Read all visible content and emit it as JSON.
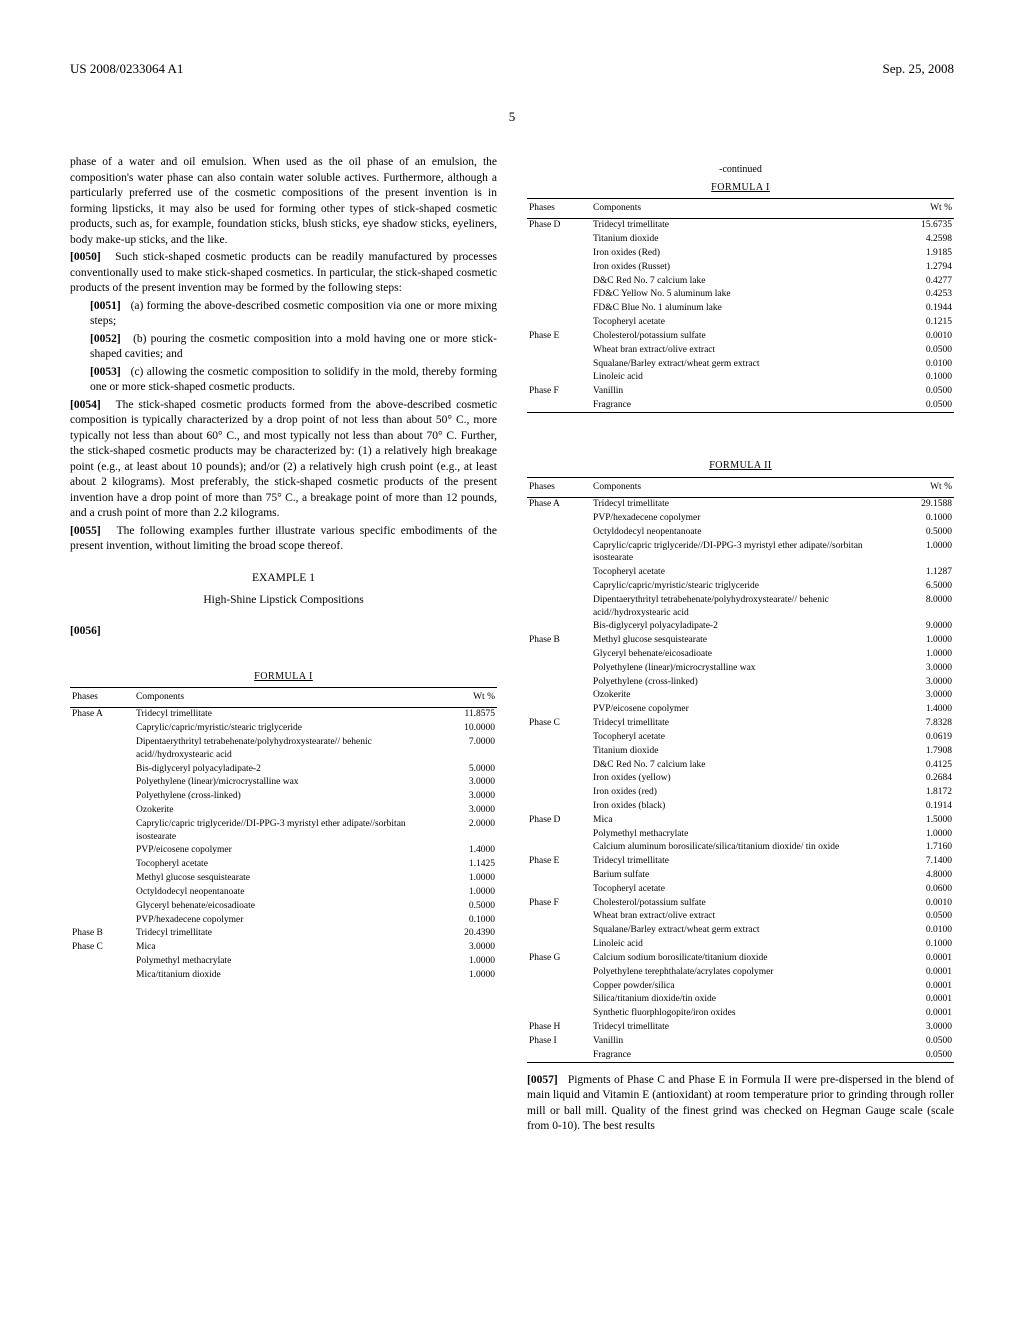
{
  "header": {
    "patent_id": "US 2008/0233064 A1",
    "date": "Sep. 25, 2008"
  },
  "page_number": "5",
  "left_col": {
    "p_continue": "phase of a water and oil emulsion. When used as the oil phase of an emulsion, the composition's water phase can also contain water soluble actives. Furthermore, although a particularly preferred use of the cosmetic compositions of the present invention is in forming lipsticks, it may also be used for forming other types of stick-shaped cosmetic products, such as, for example, foundation sticks, blush sticks, eye shadow sticks, eyeliners, body make-up sticks, and the like.",
    "p0050_num": "[0050]",
    "p0050": "Such stick-shaped cosmetic products can be readily manufactured by processes conventionally used to make stick-shaped cosmetics. In particular, the stick-shaped cosmetic products of the present invention may be formed by the following steps:",
    "p0051_num": "[0051]",
    "p0051": "(a) forming the above-described cosmetic composition via one or more mixing steps;",
    "p0052_num": "[0052]",
    "p0052": "(b) pouring the cosmetic composition into a mold having one or more stick-shaped cavities; and",
    "p0053_num": "[0053]",
    "p0053": "(c) allowing the cosmetic composition to solidify in the mold, thereby forming one or more stick-shaped cosmetic products.",
    "p0054_num": "[0054]",
    "p0054": "The stick-shaped cosmetic products formed from the above-described cosmetic composition is typically characterized by a drop point of not less than about 50° C., more typically not less than about 60° C., and most typically not less than about 70° C. Further, the stick-shaped cosmetic products may be characterized by: (1) a relatively high breakage point (e.g., at least about 10 pounds); and/or (2) a relatively high crush point (e.g., at least about 2 kilograms). Most preferably, the stick-shaped cosmetic products of the present invention have a drop point of more than 75° C., a breakage point of more than 12 pounds, and a crush point of more than 2.2 kilograms.",
    "p0055_num": "[0055]",
    "p0055": "The following examples further illustrate various specific embodiments of the present invention, without limiting the broad scope thereof.",
    "example_hdr": "EXAMPLE 1",
    "example_title": "High-Shine Lipstick Compositions",
    "p0056_num": "[0056]"
  },
  "right_col": {
    "continued": "-continued",
    "p0057_num": "[0057]",
    "p0057": "Pigments of Phase C and Phase E in Formula II were pre-dispersed in the blend of main liquid and Vitamin E (antioxidant) at room temperature prior to grinding through roller mill or ball mill. Quality of the finest grind was checked on Hegman Gauge scale (scale from 0-10). The best results"
  },
  "tables": {
    "headers": [
      "Phases",
      "Components",
      "Wt %"
    ],
    "formula1_title": "FORMULA I",
    "formula1_left": [
      {
        "phase": "Phase A",
        "comp": "Tridecyl trimellitate",
        "wt": "11.8575"
      },
      {
        "phase": "",
        "comp": "Caprylic/capric/myristic/stearic triglyceride",
        "wt": "10.0000"
      },
      {
        "phase": "",
        "comp": "Dipentaerythrityl tetrabehenate/polyhydroxystearate// behenic acid//hydroxystearic acid",
        "wt": "7.0000"
      },
      {
        "phase": "",
        "comp": "Bis-diglyceryl polyacyladipate-2",
        "wt": "5.0000"
      },
      {
        "phase": "",
        "comp": "Polyethylene (linear)/microcrystalline wax",
        "wt": "3.0000"
      },
      {
        "phase": "",
        "comp": "Polyethylene (cross-linked)",
        "wt": "3.0000"
      },
      {
        "phase": "",
        "comp": "Ozokerite",
        "wt": "3.0000"
      },
      {
        "phase": "",
        "comp": "Caprylic/capric triglyceride//DI-PPG-3 myristyl ether adipate//sorbitan isostearate",
        "wt": "2.0000"
      },
      {
        "phase": "",
        "comp": "PVP/eicosene copolymer",
        "wt": "1.4000"
      },
      {
        "phase": "",
        "comp": "Tocopheryl acetate",
        "wt": "1.1425"
      },
      {
        "phase": "",
        "comp": "Methyl glucose sesquistearate",
        "wt": "1.0000"
      },
      {
        "phase": "",
        "comp": "Octyldodecyl neopentanoate",
        "wt": "1.0000"
      },
      {
        "phase": "",
        "comp": "Glyceryl behenate/eicosadioate",
        "wt": "0.5000"
      },
      {
        "phase": "",
        "comp": "PVP/hexadecene copolymer",
        "wt": "0.1000"
      },
      {
        "phase": "Phase B",
        "comp": "Tridecyl trimellitate",
        "wt": "20.4390"
      },
      {
        "phase": "Phase C",
        "comp": "Mica",
        "wt": "3.0000"
      },
      {
        "phase": "",
        "comp": "Polymethyl methacrylate",
        "wt": "1.0000"
      },
      {
        "phase": "",
        "comp": "Mica/titanium dioxide",
        "wt": "1.0000"
      }
    ],
    "formula1_right": [
      {
        "phase": "Phase D",
        "comp": "Tridecyl trimellitate",
        "wt": "15.6735"
      },
      {
        "phase": "",
        "comp": "Titanium dioxide",
        "wt": "4.2598"
      },
      {
        "phase": "",
        "comp": "Iron oxides (Red)",
        "wt": "1.9185"
      },
      {
        "phase": "",
        "comp": "Iron oxides (Russet)",
        "wt": "1.2794"
      },
      {
        "phase": "",
        "comp": "D&C Red No. 7 calcium lake",
        "wt": "0.4277"
      },
      {
        "phase": "",
        "comp": "FD&C Yellow No. 5 aluminum lake",
        "wt": "0.4253"
      },
      {
        "phase": "",
        "comp": "FD&C Blue No. 1 aluminum lake",
        "wt": "0.1944"
      },
      {
        "phase": "",
        "comp": "Tocopheryl acetate",
        "wt": "0.1215"
      },
      {
        "phase": "Phase E",
        "comp": "Cholesterol/potassium sulfate",
        "wt": "0.0010"
      },
      {
        "phase": "",
        "comp": "Wheat bran extract/olive extract",
        "wt": "0.0500"
      },
      {
        "phase": "",
        "comp": "Squalane/Barley extract/wheat germ extract",
        "wt": "0.0100"
      },
      {
        "phase": "",
        "comp": "Linoleic acid",
        "wt": "0.1000"
      },
      {
        "phase": "Phase F",
        "comp": "Vanillin",
        "wt": "0.0500"
      },
      {
        "phase": "",
        "comp": "Fragrance",
        "wt": "0.0500"
      }
    ],
    "formula2_title": "FORMULA II",
    "formula2": [
      {
        "phase": "Phase A",
        "comp": "Tridecyl trimellitate",
        "wt": "29.1588"
      },
      {
        "phase": "",
        "comp": "PVP/hexadecene copolymer",
        "wt": "0.1000"
      },
      {
        "phase": "",
        "comp": "Octyldodecyl neopentanoate",
        "wt": "0.5000"
      },
      {
        "phase": "",
        "comp": "Caprylic/capric triglyceride//DI-PPG-3 myristyl ether adipate//sorbitan isostearate",
        "wt": "1.0000"
      },
      {
        "phase": "",
        "comp": "Tocopheryl acetate",
        "wt": "1.1287"
      },
      {
        "phase": "",
        "comp": "Caprylic/capric/myristic/stearic triglyceride",
        "wt": "6.5000"
      },
      {
        "phase": "",
        "comp": "Dipentaerythrityl tetrabehenate/polyhydroxystearate// behenic acid//hydroxystearic acid",
        "wt": "8.0000"
      },
      {
        "phase": "",
        "comp": "Bis-diglyceryl polyacyladipate-2",
        "wt": "9.0000"
      },
      {
        "phase": "Phase B",
        "comp": "Methyl glucose sesquistearate",
        "wt": "1.0000"
      },
      {
        "phase": "",
        "comp": "Glyceryl behenate/eicosadioate",
        "wt": "1.0000"
      },
      {
        "phase": "",
        "comp": "Polyethylene (linear)/microcrystalline wax",
        "wt": "3.0000"
      },
      {
        "phase": "",
        "comp": "Polyethylene (cross-linked)",
        "wt": "3.0000"
      },
      {
        "phase": "",
        "comp": "Ozokerite",
        "wt": "3.0000"
      },
      {
        "phase": "",
        "comp": "PVP/eicosene copolymer",
        "wt": "1.4000"
      },
      {
        "phase": "Phase C",
        "comp": "Tridecyl trimellitate",
        "wt": "7.8328"
      },
      {
        "phase": "",
        "comp": "Tocopheryl acetate",
        "wt": "0.0619"
      },
      {
        "phase": "",
        "comp": "Titanium dioxide",
        "wt": "1.7908"
      },
      {
        "phase": "",
        "comp": "D&C Red No. 7 calcium lake",
        "wt": "0.4125"
      },
      {
        "phase": "",
        "comp": "Iron oxides (yellow)",
        "wt": "0.2684"
      },
      {
        "phase": "",
        "comp": "Iron oxides (red)",
        "wt": "1.8172"
      },
      {
        "phase": "",
        "comp": "Iron oxides (black)",
        "wt": "0.1914"
      },
      {
        "phase": "Phase D",
        "comp": "Mica",
        "wt": "1.5000"
      },
      {
        "phase": "",
        "comp": "Polymethyl methacrylate",
        "wt": "1.0000"
      },
      {
        "phase": "",
        "comp": "Calcium aluminum borosilicate/silica/titanium dioxide/ tin oxide",
        "wt": "1.7160"
      },
      {
        "phase": "Phase E",
        "comp": "Tridecyl trimellitate",
        "wt": "7.1400"
      },
      {
        "phase": "",
        "comp": "Barium sulfate",
        "wt": "4.8000"
      },
      {
        "phase": "",
        "comp": "Tocopheryl acetate",
        "wt": "0.0600"
      },
      {
        "phase": "Phase F",
        "comp": "Cholesterol/potassium sulfate",
        "wt": "0.0010"
      },
      {
        "phase": "",
        "comp": "Wheat bran extract/olive extract",
        "wt": "0.0500"
      },
      {
        "phase": "",
        "comp": "Squalane/Barley extract/wheat germ extract",
        "wt": "0.0100"
      },
      {
        "phase": "",
        "comp": "Linoleic acid",
        "wt": "0.1000"
      },
      {
        "phase": "Phase G",
        "comp": "Calcium sodium borosilicate/titanium dioxide",
        "wt": "0.0001"
      },
      {
        "phase": "",
        "comp": "Polyethylene terephthalate/acrylates copolymer",
        "wt": "0.0001"
      },
      {
        "phase": "",
        "comp": "Copper powder/silica",
        "wt": "0.0001"
      },
      {
        "phase": "",
        "comp": "Silica/titanium dioxide/tin oxide",
        "wt": "0.0001"
      },
      {
        "phase": "",
        "comp": "Synthetic fluorphlogopite/iron oxides",
        "wt": "0.0001"
      },
      {
        "phase": "Phase H",
        "comp": "Tridecyl trimellitate",
        "wt": "3.0000"
      },
      {
        "phase": "Phase I",
        "comp": "Vanillin",
        "wt": "0.0500"
      },
      {
        "phase": "",
        "comp": "Fragrance",
        "wt": "0.0500"
      }
    ]
  }
}
